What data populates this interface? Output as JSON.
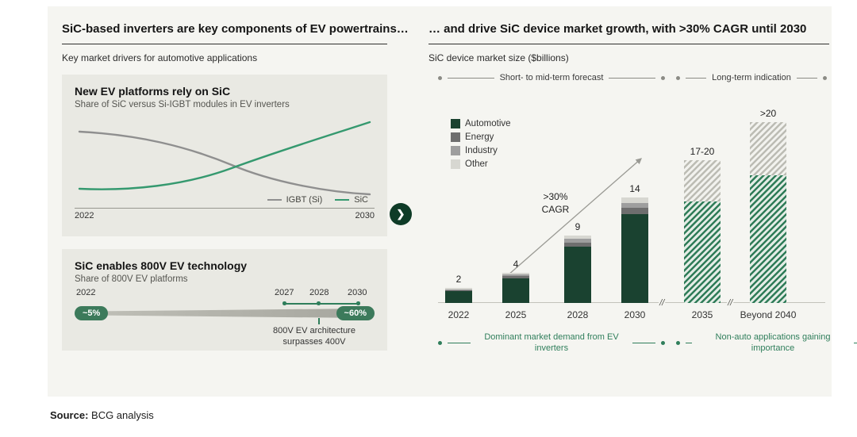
{
  "footer": {
    "source_label": "Source:",
    "source_text": " BCG analysis"
  },
  "connector": {
    "chevron": "❯"
  },
  "left": {
    "title": "SiC-based inverters are key components of EV powertrains…",
    "subtitle": "Key market drivers for automotive applications",
    "line_panel": {
      "title": "New EV platforms rely on SiC",
      "subtitle": "Share of SiC versus Si-IGBT modules in EV inverters"
    },
    "timeline_panel": {
      "title": "SiC enables 800V EV technology",
      "subtitle": "Share of 800V EV platforms",
      "start_year": "2022",
      "mid_years": [
        "2027",
        "2028"
      ],
      "end_year": "2030",
      "start_badge": "~5%",
      "end_badge": "~60%",
      "annotation_line1": "800V EV architecture",
      "annotation_line2": "surpasses 400V"
    }
  },
  "right": {
    "title": "… and drive SiC device market growth, with >30% CAGR until 2030",
    "subtitle": "SiC device market size ($billions)",
    "bracket_short_term": "Short- to  mid-term forecast",
    "bracket_long_term": "Long-term indication",
    "cagr_line1": ">30%",
    "cagr_line2": "CAGR",
    "axis_break": "//",
    "bottom_bracket_left": "Dominant market demand from EV inverters",
    "bottom_bracket_right": "Non-auto applications gaining importance"
  },
  "chart_data": [
    {
      "type": "line",
      "title": "New EV platforms rely on SiC",
      "subtitle": "Share of SiC versus Si-IGBT modules in EV inverters",
      "x_range": [
        "2022",
        "2030"
      ],
      "series": [
        {
          "name": "IGBT (Si)",
          "color": "#8f8f8f",
          "shape": "starts high in 2022, declines, crosses SiC mid-period, ends low in 2030"
        },
        {
          "name": "SiC",
          "color": "#35996f",
          "shape": "starts low in 2022, rises, crosses IGBT mid-period, ends high in 2030"
        }
      ],
      "legend_position": "bottom-right",
      "grid": false
    },
    {
      "type": "timeline",
      "title": "SiC enables 800V EV technology",
      "points": [
        {
          "year": "2022",
          "value": "~5%"
        },
        {
          "year": "2027"
        },
        {
          "year": "2028"
        },
        {
          "year": "2030",
          "value": "~60%"
        }
      ],
      "annotation": "800V EV architecture surpasses 400V"
    },
    {
      "type": "bar",
      "stacked": true,
      "title": "SiC device market size ($billions)",
      "categories": [
        "2022",
        "2025",
        "2028",
        "2030",
        "2035",
        "Beyond 2040"
      ],
      "total_labels": [
        "2",
        "4",
        "9",
        "14",
        "17-20",
        ">20"
      ],
      "series": [
        {
          "name": "Automotive",
          "color": "#1a4230",
          "values": [
            1.55,
            3.3,
            7.5,
            11.8,
            13.5,
            17
          ]
        },
        {
          "name": "Energy",
          "color": "#6e6e6e",
          "values": [
            0.15,
            0.25,
            0.55,
            0.8,
            0,
            0
          ]
        },
        {
          "name": "Industry",
          "color": "#9e9e9e",
          "values": [
            0.12,
            0.2,
            0.45,
            0.7,
            0,
            0
          ]
        },
        {
          "name": "Other",
          "color": "#d7d7d1",
          "values": [
            0.18,
            0.25,
            0.5,
            0.7,
            5.5,
            7
          ]
        }
      ],
      "hatched_categories": [
        "2035",
        "Beyond 2040"
      ],
      "axis_breaks_after": [
        "2030",
        "2035"
      ],
      "annotation": ">30% CAGR",
      "ylim": [
        0,
        26
      ],
      "grid": false,
      "legend_position": "upper-left"
    }
  ]
}
